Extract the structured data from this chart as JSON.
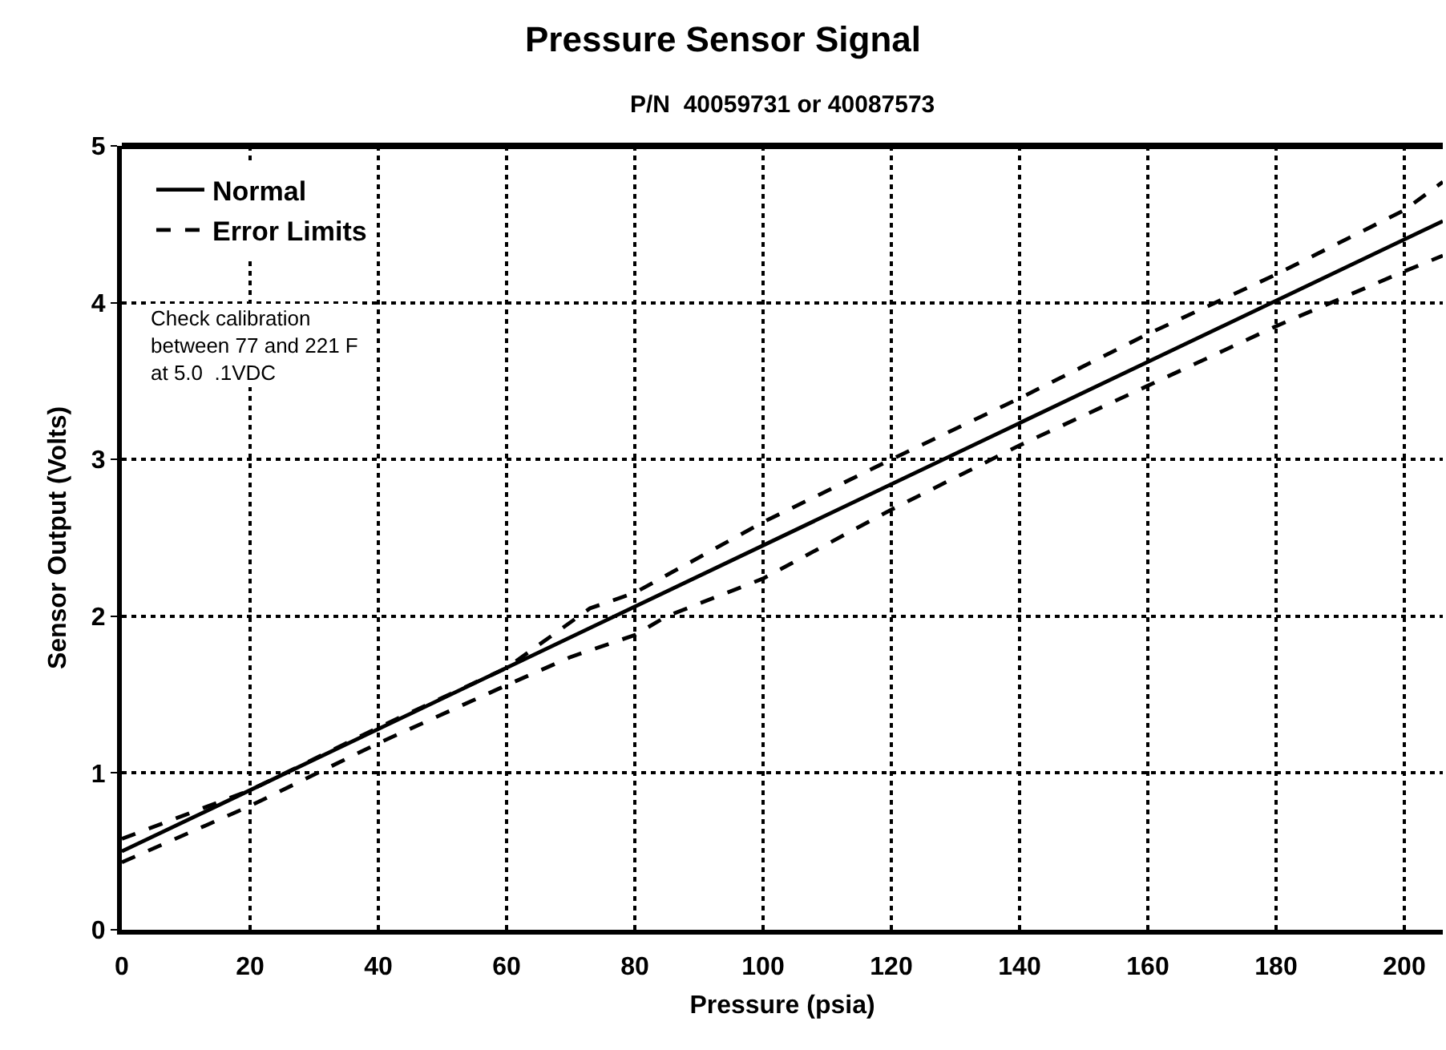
{
  "chart_data": {
    "type": "line",
    "title": "Pressure Sensor Signal",
    "subtitle": "P/N  40059731 or 40087573",
    "xlabel": "Pressure (psia)",
    "ylabel": "Sensor Output (Volts)",
    "xlim": [
      0,
      206
    ],
    "xticks": [
      0,
      20,
      40,
      60,
      80,
      100,
      120,
      140,
      160,
      180,
      200
    ],
    "ylim": [
      0,
      5
    ],
    "yticks": [
      0,
      1,
      2,
      3,
      4,
      5
    ],
    "grid": true,
    "legend": "top left",
    "marker": "none",
    "annotations": [
      "Check calibration\nbetween 77 and 221 F\nat 5.0  .1VDC"
    ],
    "series": [
      {
        "name": "Normal",
        "color": "#000000",
        "line_style": "solid",
        "x": [
          0,
          206
        ],
        "values": [
          0.5,
          4.52
        ]
      },
      {
        "name": "Error Limits",
        "color": "#000000",
        "line_style": "dashed",
        "x": [
          0,
          20,
          40,
          60,
          73,
          80,
          100,
          120,
          140,
          160,
          180,
          200,
          206
        ],
        "values": [
          0.58,
          0.89,
          1.29,
          1.67,
          2.05,
          2.15,
          2.6,
          3.0,
          3.39,
          3.8,
          4.18,
          4.59,
          4.77
        ]
      },
      {
        "color": "#000000",
        "line_style": "dashed",
        "x": [
          0,
          20,
          40,
          60,
          70,
          80,
          85,
          100,
          120,
          140,
          160,
          180,
          200,
          206
        ],
        "values": [
          0.43,
          0.79,
          1.19,
          1.56,
          1.74,
          1.88,
          2.0,
          2.24,
          2.68,
          3.09,
          3.47,
          3.85,
          4.2,
          4.3
        ]
      }
    ]
  }
}
